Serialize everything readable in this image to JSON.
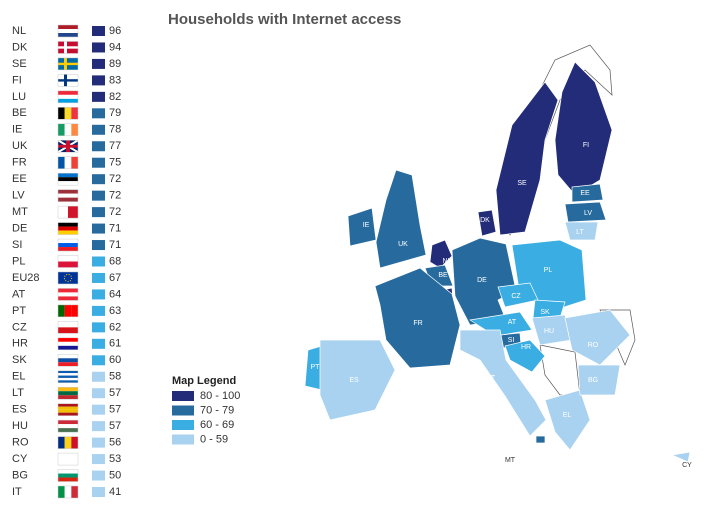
{
  "header": {
    "title": "Households with Internet access"
  },
  "rows": [
    {
      "code": "NL",
      "value": 96,
      "color": "#232c78"
    },
    {
      "code": "DK",
      "value": 94,
      "color": "#232c78"
    },
    {
      "code": "SE",
      "value": 89,
      "color": "#232c78"
    },
    {
      "code": "FI",
      "value": 83,
      "color": "#232c78"
    },
    {
      "code": "LU",
      "value": 82,
      "color": "#232c78"
    },
    {
      "code": "BE",
      "value": 79,
      "color": "#276b9e"
    },
    {
      "code": "IE",
      "value": 78,
      "color": "#276b9e"
    },
    {
      "code": "UK",
      "value": 77,
      "color": "#276b9e"
    },
    {
      "code": "FR",
      "value": 75,
      "color": "#276b9e"
    },
    {
      "code": "EE",
      "value": 72,
      "color": "#276b9e"
    },
    {
      "code": "LV",
      "value": 72,
      "color": "#276b9e"
    },
    {
      "code": "MT",
      "value": 72,
      "color": "#276b9e"
    },
    {
      "code": "DE",
      "value": 71,
      "color": "#276b9e"
    },
    {
      "code": "SI",
      "value": 71,
      "color": "#276b9e"
    },
    {
      "code": "PL",
      "value": 68,
      "color": "#3aaee3"
    },
    {
      "code": "EU28",
      "value": 67,
      "color": "#3aaee3"
    },
    {
      "code": "AT",
      "value": 64,
      "color": "#3aaee3"
    },
    {
      "code": "PT",
      "value": 63,
      "color": "#3aaee3"
    },
    {
      "code": "CZ",
      "value": 62,
      "color": "#3aaee3"
    },
    {
      "code": "HR",
      "value": 61,
      "color": "#3aaee3"
    },
    {
      "code": "SK",
      "value": 60,
      "color": "#3aaee3"
    },
    {
      "code": "EL",
      "value": 58,
      "color": "#a8d2ef"
    },
    {
      "code": "LT",
      "value": 57,
      "color": "#a8d2ef"
    },
    {
      "code": "ES",
      "value": 57,
      "color": "#a8d2ef"
    },
    {
      "code": "HU",
      "value": 57,
      "color": "#a8d2ef"
    },
    {
      "code": "RO",
      "value": 56,
      "color": "#a8d2ef"
    },
    {
      "code": "CY",
      "value": 53,
      "color": "#a8d2ef"
    },
    {
      "code": "BG",
      "value": 50,
      "color": "#a8d2ef"
    },
    {
      "code": "IT",
      "value": 41,
      "color": "#a8d2ef"
    }
  ],
  "legend": {
    "title": "Map Legend",
    "classes": [
      {
        "label": "80 - 100",
        "color": "#232c78"
      },
      {
        "label": "70 - 79",
        "color": "#276b9e"
      },
      {
        "label": "60 - 69",
        "color": "#3aaee3"
      },
      {
        "label": "0 - 59",
        "color": "#a8d2ef"
      }
    ]
  }
}
